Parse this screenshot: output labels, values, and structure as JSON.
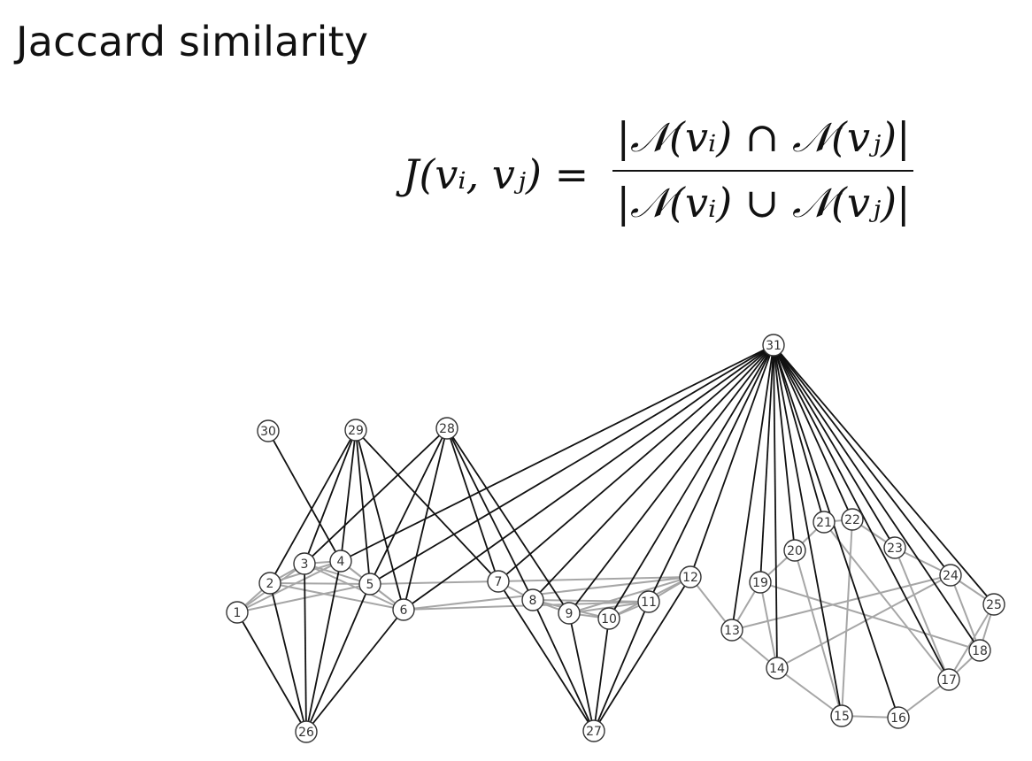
{
  "title": "Jaccard similarity",
  "formula": {
    "lhs": "J(vᵢ, vⱼ) =",
    "numerator": "|𝒩(vᵢ) ∩ 𝒩(vⱼ)|",
    "denominator": "|𝒩(vᵢ) ∪ 𝒩(vⱼ)|"
  },
  "graph": {
    "colors": {
      "black_edge": "#111111",
      "gray_edge": "#a6a6a6",
      "node_stroke": "#333333"
    },
    "nodes": [
      "1",
      "2",
      "3",
      "4",
      "5",
      "6",
      "7",
      "8",
      "9",
      "10",
      "11",
      "12",
      "13",
      "14",
      "15",
      "16",
      "17",
      "18",
      "19",
      "20",
      "21",
      "22",
      "23",
      "24",
      "25",
      "26",
      "27",
      "28",
      "29",
      "30",
      "31"
    ],
    "black_edges": [
      [
        31,
        4
      ],
      [
        31,
        5
      ],
      [
        31,
        6
      ],
      [
        31,
        7
      ],
      [
        31,
        8
      ],
      [
        31,
        9
      ],
      [
        31,
        10
      ],
      [
        31,
        11
      ],
      [
        31,
        12
      ],
      [
        31,
        13
      ],
      [
        31,
        14
      ],
      [
        31,
        15
      ],
      [
        31,
        16
      ],
      [
        31,
        17
      ],
      [
        31,
        18
      ],
      [
        31,
        19
      ],
      [
        31,
        20
      ],
      [
        31,
        21
      ],
      [
        31,
        22
      ],
      [
        31,
        23
      ],
      [
        31,
        24
      ],
      [
        31,
        25
      ],
      [
        30,
        4
      ],
      [
        29,
        2
      ],
      [
        29,
        3
      ],
      [
        29,
        4
      ],
      [
        29,
        5
      ],
      [
        29,
        6
      ],
      [
        29,
        7
      ],
      [
        28,
        3
      ],
      [
        28,
        5
      ],
      [
        28,
        6
      ],
      [
        28,
        7
      ],
      [
        28,
        8
      ],
      [
        28,
        9
      ],
      [
        26,
        1
      ],
      [
        26,
        2
      ],
      [
        26,
        3
      ],
      [
        26,
        4
      ],
      [
        26,
        5
      ],
      [
        26,
        6
      ],
      [
        27,
        7
      ],
      [
        27,
        8
      ],
      [
        27,
        9
      ],
      [
        27,
        10
      ],
      [
        27,
        11
      ],
      [
        27,
        12
      ]
    ],
    "gray_edges": [
      [
        1,
        2
      ],
      [
        1,
        3
      ],
      [
        1,
        4
      ],
      [
        1,
        5
      ],
      [
        2,
        3
      ],
      [
        2,
        4
      ],
      [
        2,
        5
      ],
      [
        2,
        6
      ],
      [
        3,
        4
      ],
      [
        3,
        5
      ],
      [
        3,
        6
      ],
      [
        4,
        5
      ],
      [
        4,
        6
      ],
      [
        5,
        6
      ],
      [
        5,
        7
      ],
      [
        6,
        12
      ],
      [
        6,
        11
      ],
      [
        7,
        8
      ],
      [
        7,
        12
      ],
      [
        8,
        9
      ],
      [
        8,
        10
      ],
      [
        8,
        11
      ],
      [
        9,
        10
      ],
      [
        9,
        11
      ],
      [
        10,
        11
      ],
      [
        10,
        12
      ],
      [
        11,
        12
      ],
      [
        9,
        12
      ],
      [
        12,
        13
      ],
      [
        13,
        19
      ],
      [
        13,
        14
      ],
      [
        13,
        24
      ],
      [
        19,
        14
      ],
      [
        19,
        18
      ],
      [
        19,
        20
      ],
      [
        20,
        21
      ],
      [
        21,
        22
      ],
      [
        22,
        23
      ],
      [
        23,
        24
      ],
      [
        24,
        25
      ],
      [
        24,
        18
      ],
      [
        20,
        15
      ],
      [
        21,
        17
      ],
      [
        22,
        15
      ],
      [
        23,
        17
      ],
      [
        14,
        15
      ],
      [
        15,
        16
      ],
      [
        16,
        17
      ],
      [
        17,
        18
      ],
      [
        18,
        25
      ],
      [
        14,
        24
      ],
      [
        17,
        25
      ]
    ]
  }
}
